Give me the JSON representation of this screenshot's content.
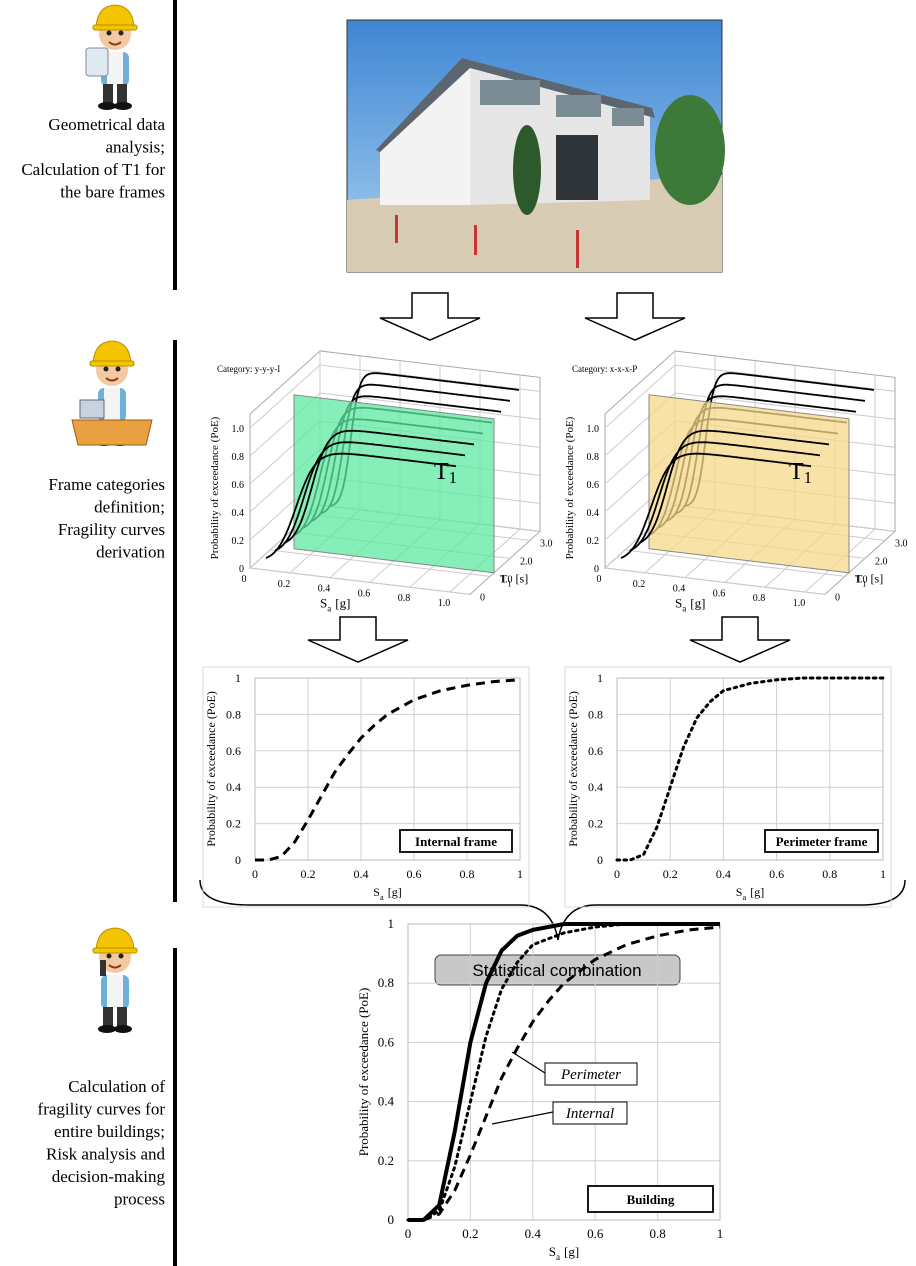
{
  "stages": [
    {
      "lines": [
        "Geometrical data",
        "analysis;",
        "Calculation of T1 for",
        "the bare frames"
      ]
    },
    {
      "lines": [
        "Frame categories",
        "definition;",
        "Fragility curves",
        "derivation"
      ]
    },
    {
      "lines": [
        "Calculation of",
        "fragility curves for",
        "entire buildings;",
        "Risk analysis and",
        "decision-making",
        "process"
      ]
    }
  ],
  "surface_charts": [
    {
      "category": "Category: y-y-y-I",
      "zlabel": "Probability of exceedance (PoE)",
      "xlabel": {
        "symbol": "S",
        "subscript": "a",
        "unit": "[g]"
      },
      "tlabel": {
        "symbol": "T",
        "subscript": "1",
        "unit": "[s]"
      },
      "plane_label": {
        "symbol": "T",
        "subscript": "1"
      },
      "plane_color": "#5ee8a0",
      "zticks": [
        0,
        0.2,
        0.4,
        0.6,
        0.8,
        {
          "value": 1,
          "label": "1.0"
        }
      ],
      "xticks": [
        0,
        0.2,
        0.4,
        0.6,
        0.8,
        {
          "value": 1,
          "label": "1.0"
        }
      ],
      "tticks": [
        0,
        {
          "value": 1,
          "label": "1.0"
        },
        {
          "value": 2,
          "label": "2.0"
        },
        {
          "value": 3,
          "label": "3.0"
        }
      ]
    },
    {
      "category": "Category: x-x-x-P",
      "zlabel": "Probability of exceedance (PoE)",
      "xlabel": {
        "symbol": "S",
        "subscript": "a",
        "unit": "[g]"
      },
      "tlabel": {
        "symbol": "T",
        "subscript": "1",
        "unit": "[s]"
      },
      "plane_label": {
        "symbol": "T",
        "subscript": "1"
      },
      "plane_color": "#f7d889",
      "zticks": [
        0,
        0.2,
        0.4,
        0.6,
        0.8,
        {
          "value": 1,
          "label": "1.0"
        }
      ],
      "xticks": [
        0,
        0.2,
        0.4,
        0.6,
        0.8,
        {
          "value": 1,
          "label": "1.0"
        }
      ],
      "tticks": [
        0,
        {
          "value": 1,
          "label": "1.0"
        },
        {
          "value": 2,
          "label": "2.0"
        },
        {
          "value": 3,
          "label": "3.0"
        }
      ]
    }
  ],
  "combination_label": "Statistical combination",
  "chart_data": [
    {
      "type": "line",
      "ylabel": "Probability of exceedance (PoE)",
      "xlabel": {
        "symbol": "S",
        "subscript": "a",
        "unit": "[g]"
      },
      "xlim": [
        0,
        1
      ],
      "ylim": [
        0,
        1
      ],
      "xticks": [
        0,
        0.2,
        0.4,
        0.6,
        0.8,
        1
      ],
      "yticks": [
        0,
        0.2,
        0.4,
        0.6,
        0.8,
        1
      ],
      "grid": true,
      "x": [
        0,
        0.05,
        0.1,
        0.15,
        0.2,
        0.25,
        0.3,
        0.35,
        0.4,
        0.45,
        0.5,
        0.6,
        0.7,
        0.8,
        0.9,
        1
      ],
      "series": [
        {
          "color": "#000000",
          "dash": "dashed",
          "values": [
            0,
            0,
            0.02,
            0.1,
            0.22,
            0.35,
            0.48,
            0.58,
            0.67,
            0.74,
            0.8,
            0.88,
            0.93,
            0.96,
            0.98,
            0.99
          ]
        }
      ],
      "annotations": [
        "Internal frame"
      ]
    },
    {
      "type": "line",
      "ylabel": "Probability of exceedance (PoE)",
      "xlabel": {
        "symbol": "S",
        "subscript": "a",
        "unit": "[g]"
      },
      "xlim": [
        0,
        1
      ],
      "ylim": [
        0,
        1
      ],
      "xticks": [
        0,
        0.2,
        0.4,
        0.6,
        0.8,
        1
      ],
      "yticks": [
        0,
        0.2,
        0.4,
        0.6,
        0.8,
        1
      ],
      "grid": true,
      "x": [
        0,
        0.05,
        0.1,
        0.15,
        0.2,
        0.25,
        0.3,
        0.35,
        0.4,
        0.45,
        0.5,
        0.6,
        0.7,
        0.8,
        0.9,
        1
      ],
      "series": [
        {
          "color": "#000000",
          "dash": "dotted",
          "values": [
            0,
            0,
            0.03,
            0.18,
            0.4,
            0.62,
            0.78,
            0.87,
            0.93,
            0.95,
            0.97,
            0.99,
            1,
            1,
            1,
            1
          ]
        }
      ],
      "annotations": [
        "Perimeter frame"
      ]
    },
    {
      "type": "line",
      "ylabel": "Probability of exceedance (PoE)",
      "xlabel": {
        "symbol": "S",
        "subscript": "a",
        "unit": "[g]"
      },
      "xlim": [
        0,
        1
      ],
      "ylim": [
        0,
        1
      ],
      "xticks": [
        0,
        0.2,
        0.4,
        0.6,
        0.8,
        1
      ],
      "yticks": [
        0,
        0.2,
        0.4,
        0.6,
        0.8,
        1
      ],
      "grid": true,
      "x": [
        0,
        0.05,
        0.1,
        0.15,
        0.2,
        0.25,
        0.3,
        0.35,
        0.4,
        0.45,
        0.5,
        0.6,
        0.7,
        0.8,
        0.9,
        1
      ],
      "series": [
        {
          "color": "#000000",
          "dash": "solid",
          "values": [
            0,
            0,
            0.05,
            0.3,
            0.6,
            0.8,
            0.91,
            0.96,
            0.98,
            0.99,
            1,
            1,
            1,
            1,
            1,
            1
          ]
        },
        {
          "color": "#000000",
          "dash": "dotted",
          "values": [
            0,
            0,
            0.03,
            0.18,
            0.4,
            0.62,
            0.78,
            0.87,
            0.93,
            0.95,
            0.97,
            0.99,
            1,
            1,
            1,
            1
          ]
        },
        {
          "color": "#000000",
          "dash": "dashed",
          "values": [
            0,
            0,
            0.02,
            0.1,
            0.22,
            0.35,
            0.48,
            0.58,
            0.67,
            0.74,
            0.8,
            0.88,
            0.93,
            0.96,
            0.98,
            0.99
          ]
        }
      ],
      "annotations": [
        "Perimeter",
        "Internal",
        "Building"
      ]
    }
  ]
}
